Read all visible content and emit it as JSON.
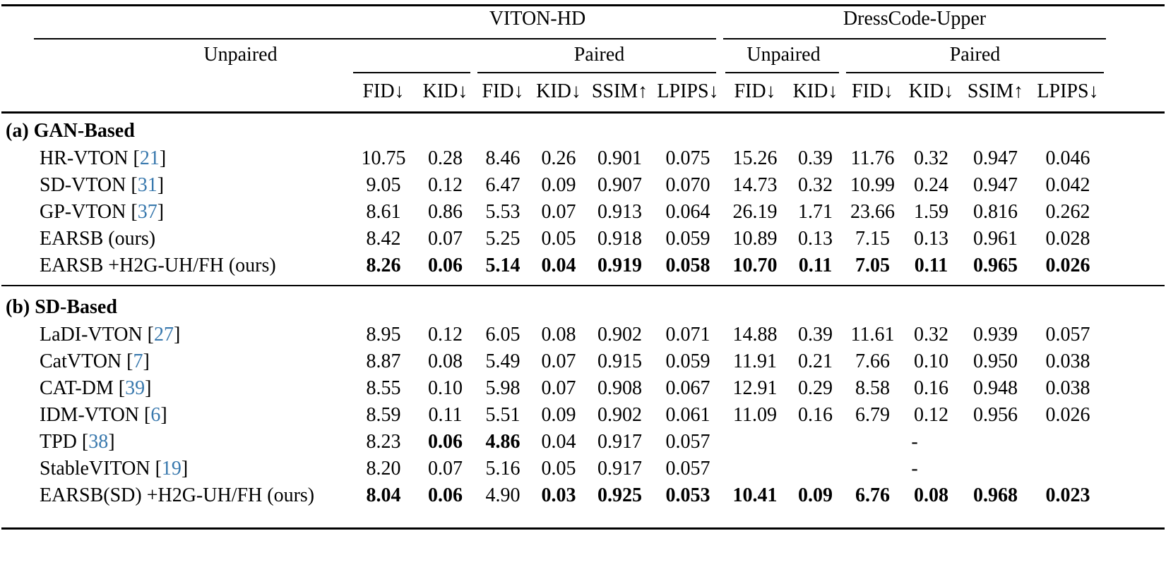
{
  "colors": {
    "cite_link": "#3878ad",
    "rule": "#000000",
    "background": "#ffffff",
    "text": "#000000"
  },
  "cite_open": "[",
  "cite_close": "]",
  "header": {
    "groups": [
      {
        "label": "VITON-HD"
      },
      {
        "label": "DressCode-Upper"
      }
    ],
    "subgroups": [
      {
        "label": "Unpaired"
      },
      {
        "label": "Paired"
      },
      {
        "label": "Unpaired"
      },
      {
        "label": "Paired"
      }
    ],
    "metrics": [
      "FID↓",
      "KID↓",
      "FID↓",
      "KID↓",
      "SSIM↑",
      "LPIPS↓",
      "FID↓",
      "KID↓",
      "FID↓",
      "KID↓",
      "SSIM↑",
      "LPIPS↓"
    ]
  },
  "sections": [
    {
      "title": "(a) GAN-Based",
      "rows": [
        {
          "method": "HR-VTON",
          "cite": "21",
          "values": [
            "10.75",
            "0.28",
            "8.46",
            "0.26",
            "0.901",
            "0.075",
            "15.26",
            "0.39",
            "11.76",
            "0.32",
            "0.947",
            "0.046"
          ],
          "bold": []
        },
        {
          "method": "SD-VTON",
          "cite": "31",
          "values": [
            "9.05",
            "0.12",
            "6.47",
            "0.09",
            "0.907",
            "0.070",
            "14.73",
            "0.32",
            "10.99",
            "0.24",
            "0.947",
            "0.042"
          ],
          "bold": []
        },
        {
          "method": "GP-VTON",
          "cite": "37",
          "values": [
            "8.61",
            "0.86",
            "5.53",
            "0.07",
            "0.913",
            "0.064",
            "26.19",
            "1.71",
            "23.66",
            "1.59",
            "0.816",
            "0.262"
          ],
          "bold": []
        },
        {
          "method": "EARSB (ours)",
          "cite": null,
          "values": [
            "8.42",
            "0.07",
            "5.25",
            "0.05",
            "0.918",
            "0.059",
            "10.89",
            "0.13",
            "7.15",
            "0.13",
            "0.961",
            "0.028"
          ],
          "bold": []
        },
        {
          "method": "EARSB +H2G-UH/FH (ours)",
          "cite": null,
          "values": [
            "8.26",
            "0.06",
            "5.14",
            "0.04",
            "0.919",
            "0.058",
            "10.70",
            "0.11",
            "7.05",
            "0.11",
            "0.965",
            "0.026"
          ],
          "bold": [
            0,
            1,
            2,
            3,
            4,
            5,
            6,
            7,
            8,
            9,
            10,
            11
          ]
        }
      ]
    },
    {
      "title": "(b) SD-Based",
      "rows": [
        {
          "method": "LaDI-VTON",
          "cite": "27",
          "values": [
            "8.95",
            "0.12",
            "6.05",
            "0.08",
            "0.902",
            "0.071",
            "14.88",
            "0.39",
            "11.61",
            "0.32",
            "0.939",
            "0.057"
          ],
          "bold": []
        },
        {
          "method": "CatVTON",
          "cite": "7",
          "values": [
            "8.87",
            "0.08",
            "5.49",
            "0.07",
            "0.915",
            "0.059",
            "11.91",
            "0.21",
            "7.66",
            "0.10",
            "0.950",
            "0.038"
          ],
          "bold": []
        },
        {
          "method": "CAT-DM",
          "cite": "39",
          "values": [
            "8.55",
            "0.10",
            "5.98",
            "0.07",
            "0.908",
            "0.067",
            "12.91",
            "0.29",
            "8.58",
            "0.16",
            "0.948",
            "0.038"
          ],
          "bold": []
        },
        {
          "method": "IDM-VTON",
          "cite": "6",
          "values": [
            "8.59",
            "0.11",
            "5.51",
            "0.09",
            "0.902",
            "0.061",
            "11.09",
            "0.16",
            "6.79",
            "0.12",
            "0.956",
            "0.026"
          ],
          "bold": []
        },
        {
          "method": "TPD",
          "cite": "38",
          "values": [
            "8.23",
            "0.06",
            "4.86",
            "0.04",
            "0.917",
            "0.057"
          ],
          "bold": [
            1,
            2
          ],
          "dash_rest": "-"
        },
        {
          "method": "StableVITON",
          "cite": "19",
          "values": [
            "8.20",
            "0.07",
            "5.16",
            "0.05",
            "0.917",
            "0.057"
          ],
          "bold": [],
          "dash_rest": "-"
        },
        {
          "method": "EARSB(SD) +H2G-UH/FH (ours)",
          "cite": null,
          "values": [
            "8.04",
            "0.06",
            "4.90",
            "0.03",
            "0.925",
            "0.053",
            "10.41",
            "0.09",
            "6.76",
            "0.08",
            "0.968",
            "0.023"
          ],
          "bold": [
            0,
            1,
            3,
            4,
            5,
            6,
            7,
            8,
            9,
            10,
            11
          ]
        }
      ]
    }
  ]
}
